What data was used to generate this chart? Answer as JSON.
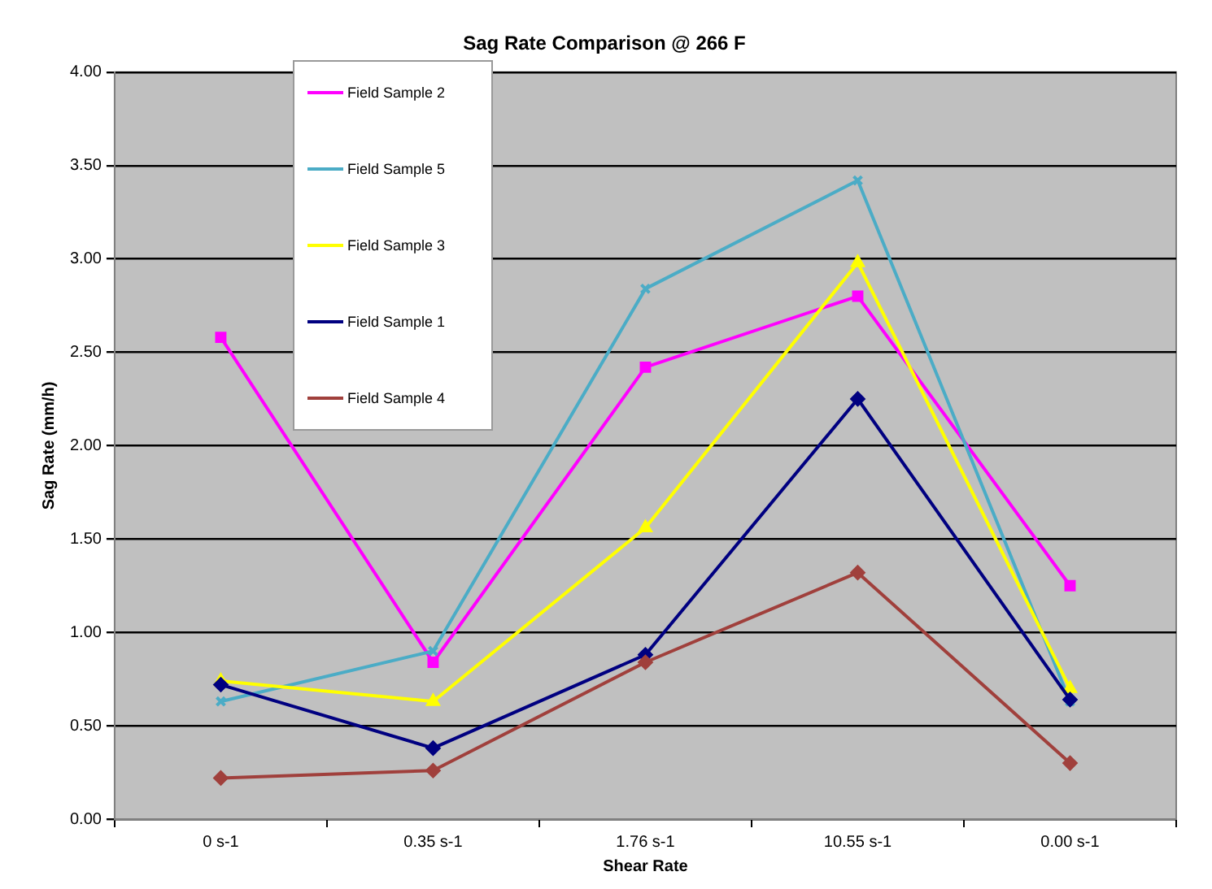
{
  "chart_data": {
    "type": "line",
    "title": "Sag Rate Comparison @ 266 F",
    "xlabel": "Shear Rate",
    "ylabel": "Sag Rate (mm/h)",
    "categories": [
      "0 s-1",
      "0.35 s-1",
      "1.76 s-1",
      "10.55 s-1",
      "0.00 s-1"
    ],
    "series": [
      {
        "name": "Field Sample 2",
        "color": "#ff00ff",
        "marker": "square",
        "values": [
          2.58,
          0.84,
          2.42,
          2.8,
          1.25
        ]
      },
      {
        "name": "Field Sample 5",
        "color": "#4bacc6",
        "marker": "cross",
        "values": [
          0.63,
          0.9,
          2.84,
          3.42,
          0.63
        ]
      },
      {
        "name": "Field Sample 3",
        "color": "#ffff00",
        "marker": "triangle",
        "values": [
          0.74,
          0.63,
          1.56,
          2.98,
          0.7
        ]
      },
      {
        "name": "Field Sample 1",
        "color": "#000080",
        "marker": "diamond",
        "values": [
          0.72,
          0.38,
          0.88,
          2.25,
          0.64
        ]
      },
      {
        "name": "Field Sample 4",
        "color": "#a0403c",
        "marker": "diamond",
        "values": [
          0.22,
          0.26,
          0.84,
          1.32,
          0.3
        ]
      }
    ],
    "ylim": [
      0,
      4
    ],
    "yticks": [
      {
        "value": 0,
        "label": "0.00"
      },
      {
        "value": 0.5,
        "label": "0.50"
      },
      {
        "value": 1,
        "label": "1.00"
      },
      {
        "value": 1.5,
        "label": "1.50"
      },
      {
        "value": 2,
        "label": "2.00"
      },
      {
        "value": 2.5,
        "label": "2.50"
      },
      {
        "value": 3,
        "label": "3.00"
      },
      {
        "value": 3.5,
        "label": "3.50"
      },
      {
        "value": 4,
        "label": "4.00"
      }
    ],
    "grid": "y",
    "legend": "top left",
    "line_style": "solid"
  }
}
